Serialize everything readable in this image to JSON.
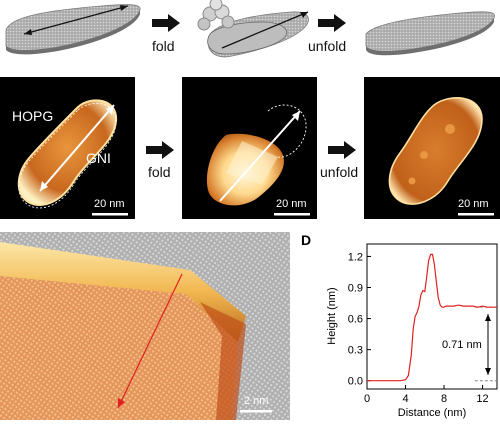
{
  "top_row": {
    "step1_label": "fold",
    "step2_label": "unfold"
  },
  "middle_row": {
    "substrate_label": "HOPG",
    "flake_label": "GNI",
    "step1_label": "fold",
    "step2_label": "unfold",
    "scalebars": [
      "20 nm",
      "20 nm",
      "20 nm"
    ]
  },
  "panel_c": {
    "scalebar": "2 nm"
  },
  "panel_d": {
    "panel_label": "D",
    "annotation": "0.71 nm"
  },
  "colors": {
    "afm_dark": "#000000",
    "afm_mid": "#c86a1e",
    "afm_bright": "#fff2c8",
    "profile_line": "#e02020",
    "arrow_red": "#e02020",
    "ribbon_gray": "#9a9a9a"
  },
  "chart_data": {
    "type": "line",
    "title": "",
    "xlabel": "Distance (nm)",
    "ylabel": "Height (nm)",
    "xlim": [
      0,
      13.5
    ],
    "ylim": [
      -0.08,
      1.32
    ],
    "xticks": [
      "0",
      "4",
      "8",
      "12"
    ],
    "yticks": [
      "0.0",
      "0.3",
      "0.6",
      "0.9",
      "1.2"
    ],
    "grid": false,
    "series": [
      {
        "x": [
          0,
          0.5,
          1,
          1.5,
          2,
          2.5,
          3,
          3.5,
          4,
          4.3,
          4.6,
          4.8,
          5.0,
          5.2,
          5.4,
          5.6,
          5.8,
          6.0,
          6.2,
          6.4,
          6.6,
          6.8,
          7.0,
          7.2,
          7.4,
          7.6,
          7.8,
          8.0,
          8.2,
          8.5,
          9.0,
          9.5,
          10,
          10.5,
          11,
          11.5,
          12,
          12.5,
          13,
          13.5
        ],
        "y": [
          0.0,
          0.0,
          0.0,
          0.0,
          0.0,
          0.0,
          0.0,
          0.0,
          0.01,
          0.05,
          0.25,
          0.5,
          0.62,
          0.66,
          0.72,
          0.83,
          0.87,
          0.86,
          1.0,
          1.16,
          1.22,
          1.22,
          1.12,
          0.96,
          0.8,
          0.73,
          0.71,
          0.71,
          0.72,
          0.72,
          0.72,
          0.73,
          0.72,
          0.72,
          0.72,
          0.71,
          0.72,
          0.71,
          0.71,
          0.71
        ]
      }
    ],
    "reference_lines": [
      0.0,
      0.71
    ]
  }
}
